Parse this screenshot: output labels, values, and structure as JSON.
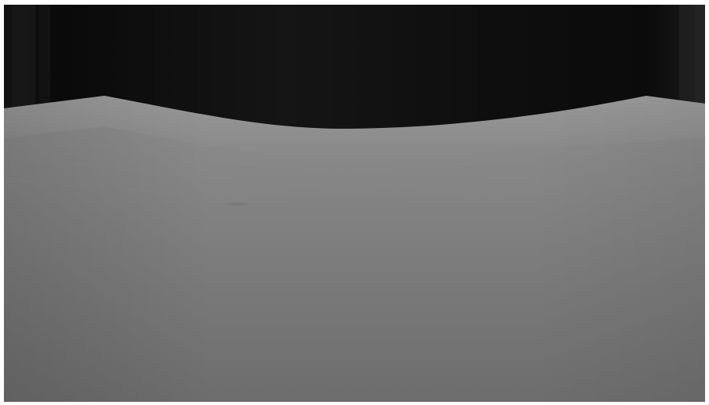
{
  "photo": {
    "subject": "sheet-surface-with-curved-edge",
    "colors": {
      "background_dark": "#0c0c0c",
      "background_mid": "#1a1a1a",
      "surface_top": "#8c8c8c",
      "surface_mid": "#7b7b7b",
      "surface_bottom": "#6e6e6e",
      "frame": "#ffffff"
    }
  }
}
